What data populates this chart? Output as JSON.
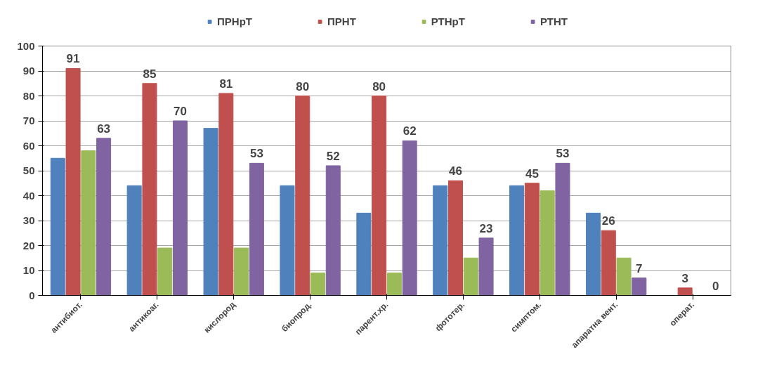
{
  "chart_data": {
    "type": "bar",
    "categories": [
      "антибиот.",
      "антикоаг.",
      "кислород",
      "биопрод.",
      "парент.хр.",
      "фототер.",
      "симптом.",
      "апаратна вент.",
      "операт."
    ],
    "series": [
      {
        "name": "ПРНрТ",
        "color": "#4f81bd",
        "values": [
          55,
          44,
          67,
          44,
          33,
          44,
          44,
          33,
          0
        ]
      },
      {
        "name": "ПРНТ",
        "color": "#c0504d",
        "values": [
          91,
          85,
          81,
          80,
          80,
          46,
          45,
          26,
          3
        ],
        "value_labels": [
          "91",
          "85",
          "81",
          "80",
          "80",
          "46",
          "45",
          "26",
          "3"
        ]
      },
      {
        "name": "РТНрТ",
        "color": "#9bbb59",
        "values": [
          58,
          19,
          19,
          9,
          9,
          15,
          42,
          15,
          0
        ]
      },
      {
        "name": "РТНТ",
        "color": "#8064a2",
        "values": [
          63,
          70,
          53,
          52,
          62,
          23,
          53,
          7,
          0
        ],
        "value_labels": [
          "63",
          "70",
          "53",
          "52",
          "62",
          "23",
          "53",
          "7",
          "0"
        ]
      }
    ],
    "ylim": [
      0,
      100
    ],
    "yticks": [
      0,
      10,
      20,
      30,
      40,
      50,
      60,
      70,
      80,
      90,
      100
    ],
    "grid": "y",
    "legend": "top"
  }
}
